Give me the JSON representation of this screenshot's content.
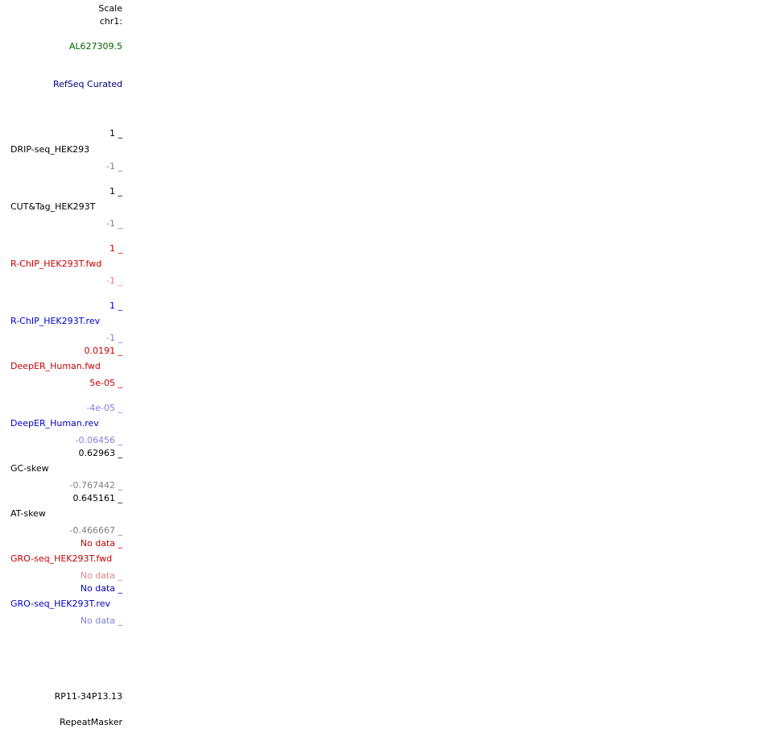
{
  "header": {
    "scale_label": "Scale",
    "chrom_label": "chr1:"
  },
  "gene_track": {
    "gene_label": "AL627309.5",
    "refseq_label": "RefSeq Curated"
  },
  "tracks": {
    "drip": {
      "name": "DRIP-seq_HEK293",
      "max": "1 _",
      "min": "-1 _"
    },
    "cut": {
      "name": "CUT&Tag_HEK293T",
      "max": "1 _",
      "min": "-1 _"
    },
    "rchip_fwd": {
      "name": "R-ChIP_HEK293T.fwd",
      "max": "1 _",
      "min": "-1 _"
    },
    "rchip_rev": {
      "name": "R-ChIP_HEK293T.rev",
      "max": "1 _",
      "min": "-1 _"
    },
    "deeper_fwd": {
      "name": "DeepER_Human.fwd",
      "max": "0.0191 _",
      "min": "5e-05 _"
    },
    "deeper_rev": {
      "name": "DeepER_Human.rev",
      "max": "-4e-05 _",
      "min": "-0.06456 _"
    },
    "gc_skew": {
      "name": "GC-skew",
      "max": "0.62963 _",
      "min": "-0.767442 _"
    },
    "at_skew": {
      "name": "AT-skew",
      "max": "0.645161 _",
      "min": "-0.466667 _"
    },
    "gro_fwd": {
      "name": "GRO-seq_HEK293T.fwd",
      "max": "No data _",
      "min": "No data _"
    },
    "gro_rev": {
      "name": "GRO-seq_HEK293T.rev",
      "max": "No data _",
      "min": "No data _"
    }
  },
  "bottom": {
    "clone_label": "RP11-34P13.13",
    "repeat_label": "RepeatMasker"
  },
  "colors": {
    "black": "#000000",
    "grey": "#808080",
    "green": "#006400",
    "navy": "#000080",
    "red": "#cc0000",
    "pink": "#e98080",
    "blue": "#0000cc",
    "light_blue": "#8080e6"
  }
}
